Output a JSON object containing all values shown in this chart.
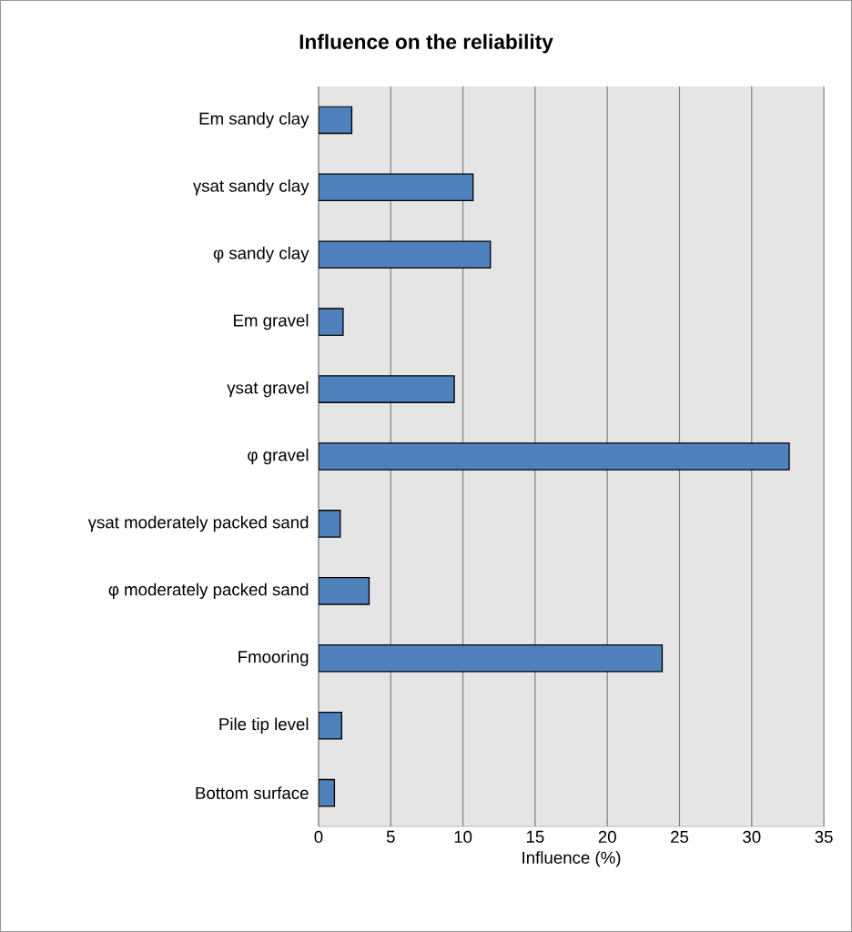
{
  "chart_data": {
    "type": "bar",
    "orientation": "horizontal",
    "title": "Influence on the reliability",
    "xlabel": "Influence (%)",
    "categories": [
      "Em sandy clay",
      "γsat sandy clay",
      "φ sandy clay",
      "Em gravel",
      "γsat gravel",
      "φ gravel",
      "γsat moderately packed sand",
      "φ moderately packed sand",
      "Fmooring",
      "Pile tip level",
      "Bottom surface"
    ],
    "values": [
      2.3,
      10.7,
      11.9,
      1.7,
      9.4,
      32.6,
      1.5,
      3.5,
      23.8,
      1.6,
      1.1
    ],
    "color": "#4f81bd",
    "xlim": [
      0,
      35
    ],
    "xticks": [
      0,
      5,
      10,
      15,
      20,
      25,
      30,
      35
    ],
    "grid": "x"
  }
}
